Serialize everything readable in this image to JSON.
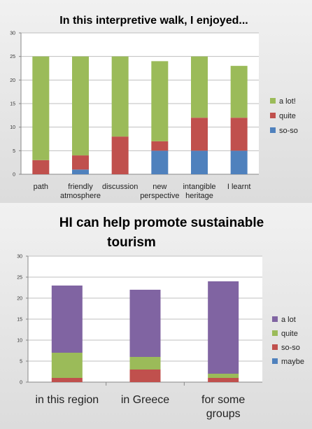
{
  "chart_data": [
    {
      "type": "bar",
      "stacked": true,
      "title": "In this interpretive walk, I enjoyed...",
      "categories": [
        "path",
        "friendly atmosphere",
        "discussion",
        "new perspective",
        "intangible heritage",
        "I learnt"
      ],
      "ylim": [
        0,
        30
      ],
      "yticks": [
        0,
        5,
        10,
        15,
        20,
        25,
        30
      ],
      "grid": true,
      "legend_position": "right",
      "series": [
        {
          "name": "so-so",
          "color": "#4f81bd",
          "values": [
            0,
            1,
            0,
            5,
            5,
            5
          ]
        },
        {
          "name": "quite",
          "color": "#c0504d",
          "values": [
            3,
            3,
            8,
            2,
            7,
            7
          ]
        },
        {
          "name": "a lot!",
          "color": "#9bbb59",
          "values": [
            22,
            21,
            17,
            17,
            13,
            11
          ]
        }
      ]
    },
    {
      "type": "bar",
      "stacked": true,
      "title": "HI can help promote sustainable tourism",
      "categories": [
        "in this region",
        "in Greece",
        "for some groups"
      ],
      "ylim": [
        0,
        30
      ],
      "yticks": [
        0,
        5,
        10,
        15,
        20,
        25,
        30
      ],
      "grid": true,
      "legend_position": "right",
      "series": [
        {
          "name": "maybe",
          "color": "#4f81bd",
          "values": [
            0,
            0,
            0
          ]
        },
        {
          "name": "so-so",
          "color": "#c0504d",
          "values": [
            1,
            3,
            1
          ]
        },
        {
          "name": "quite",
          "color": "#9bbb59",
          "values": [
            6,
            3,
            1
          ]
        },
        {
          "name": "a lot",
          "color": "#8064a2",
          "values": [
            16,
            16,
            22
          ]
        }
      ]
    }
  ]
}
